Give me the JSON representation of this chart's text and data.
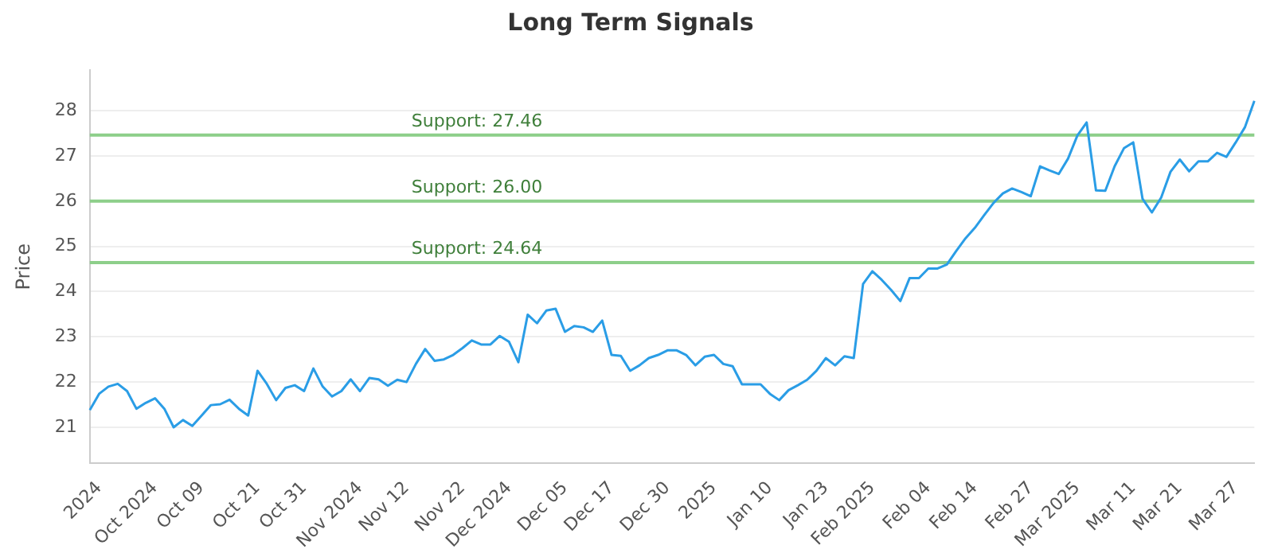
{
  "chart_data": {
    "type": "line",
    "title": "Long Term Signals",
    "ylabel": "Price",
    "categories": [
      null,
      "2024",
      null,
      null,
      null,
      null,
      null,
      "Oct 2024",
      null,
      null,
      null,
      null,
      "Oct 09",
      null,
      null,
      null,
      null,
      null,
      "Oct 21",
      null,
      null,
      null,
      null,
      "Oct 31",
      null,
      null,
      null,
      null,
      null,
      "Nov 2024",
      null,
      null,
      null,
      null,
      "Nov 12",
      null,
      null,
      null,
      null,
      null,
      "Nov 22",
      null,
      null,
      null,
      null,
      "Dec 2024",
      null,
      null,
      null,
      null,
      null,
      "Dec 05",
      null,
      null,
      null,
      null,
      "Dec 17",
      null,
      null,
      null,
      null,
      null,
      "Dec 30",
      null,
      null,
      null,
      null,
      "2025",
      null,
      null,
      null,
      null,
      null,
      "Jan 10",
      null,
      null,
      null,
      null,
      null,
      "Jan 23",
      null,
      null,
      null,
      null,
      "Feb 2025",
      null,
      null,
      null,
      null,
      null,
      "Feb 04",
      null,
      null,
      null,
      null,
      "Feb 14",
      null,
      null,
      null,
      null,
      null,
      "Feb 27",
      null,
      null,
      null,
      null,
      "Mar 2025",
      null,
      null,
      null,
      null,
      null,
      "Mar 11",
      null,
      null,
      null,
      null,
      "Mar 21",
      null,
      null,
      null,
      null,
      null,
      "Mar 27",
      null,
      null
    ],
    "series": [
      {
        "color": "#2a9de6",
        "values": [
          21.38,
          21.74,
          21.9,
          21.96,
          21.8,
          21.41,
          21.54,
          21.64,
          21.41,
          21.0,
          21.16,
          21.03,
          21.26,
          21.49,
          21.51,
          21.61,
          21.41,
          21.26,
          22.25,
          21.96,
          21.6,
          21.87,
          21.93,
          21.8,
          22.3,
          21.9,
          21.68,
          21.8,
          22.06,
          21.8,
          22.09,
          22.06,
          21.92,
          22.05,
          22.0,
          22.4,
          22.73,
          22.47,
          22.5,
          22.6,
          22.75,
          22.92,
          22.83,
          22.83,
          23.02,
          22.89,
          22.44,
          23.49,
          23.3,
          23.58,
          23.62,
          23.11,
          23.24,
          23.21,
          23.11,
          23.36,
          22.6,
          22.58,
          22.25,
          22.37,
          22.53,
          22.6,
          22.7,
          22.7,
          22.6,
          22.37,
          22.56,
          22.6,
          22.4,
          22.35,
          21.95,
          21.95,
          21.95,
          21.74,
          21.6,
          21.82,
          21.93,
          22.05,
          22.25,
          22.53,
          22.37,
          22.57,
          22.53,
          24.17,
          24.45,
          24.26,
          24.04,
          23.79,
          24.3,
          24.3,
          24.51,
          24.51,
          24.6,
          24.9,
          25.18,
          25.41,
          25.69,
          25.96,
          26.17,
          26.28,
          26.2,
          26.11,
          26.77,
          26.68,
          26.6,
          26.94,
          27.45,
          27.74,
          26.24,
          26.23,
          26.77,
          27.17,
          27.3,
          26.05,
          25.75,
          26.08,
          26.65,
          26.92,
          26.66,
          26.88,
          26.88,
          27.07,
          26.98,
          27.3,
          27.64,
          28.22
        ]
      }
    ],
    "ylim": [
      20.2,
      28.9
    ],
    "yticks": [
      21,
      22,
      23,
      24,
      25,
      26,
      27,
      28
    ],
    "grid": "y",
    "legend": false,
    "marker": "none",
    "line_style": "solid",
    "ref_lines": [
      {
        "axis": "y",
        "value": 27.46,
        "label": "Support: 27.46",
        "color": "#8dcf8a"
      },
      {
        "axis": "y",
        "value": 26.0,
        "label": "Support: 26.00",
        "color": "#8dcf8a"
      },
      {
        "axis": "y",
        "value": 24.64,
        "label": "Support: 24.64",
        "color": "#8dcf8a"
      }
    ]
  }
}
